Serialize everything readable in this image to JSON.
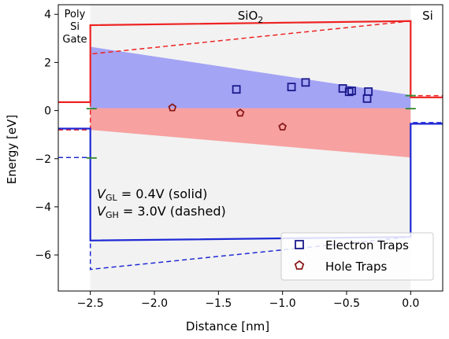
{
  "chart_data": {
    "type": "line",
    "xlabel": "Distance  [nm]",
    "ylabel": "Energy  [eV]",
    "xlim": [
      -2.75,
      0.25
    ],
    "ylim": [
      -7.5,
      4.4
    ],
    "xticks": [
      -2.5,
      -2.0,
      -1.5,
      -1.0,
      -0.5,
      0.0
    ],
    "xtick_labels": [
      "−2.5",
      "−2.0",
      "−1.5",
      "−1.0",
      "−0.5",
      "0.0"
    ],
    "yticks": [
      4,
      2,
      0,
      -2,
      -4,
      -6
    ],
    "ytick_labels": [
      "4",
      "2",
      "0",
      "−2",
      "−4",
      "−6"
    ],
    "regions": [
      {
        "name": "Poly Si Gate",
        "label_lines": [
          "Poly",
          "Si",
          "Gate"
        ],
        "x": [
          -2.75,
          -2.5
        ]
      },
      {
        "name": "SiO2",
        "label": "SiO",
        "label_sub": "2",
        "x": [
          -2.5,
          0.0
        ]
      },
      {
        "name": "Si",
        "label": "Si",
        "x": [
          0.0,
          0.25
        ]
      }
    ],
    "annotations": {
      "vgl_main": "V",
      "vgl_sub": "GL",
      "vgl_text": " = 0.4V (solid)",
      "vgh_main": "V",
      "vgh_sub": "GH",
      "vgh_text": " = 3.0V (dashed)"
    },
    "bands": [
      {
        "name": "electron trap band",
        "color": "#a4a4f5",
        "polygon": [
          [
            -2.5,
            2.65
          ],
          [
            0.0,
            0.65
          ],
          [
            0.0,
            0.1
          ],
          [
            -2.5,
            0.1
          ]
        ]
      },
      {
        "name": "hole trap band",
        "color": "#f7a1a1",
        "polygon": [
          [
            -2.5,
            0.1
          ],
          [
            0.0,
            0.1
          ],
          [
            0.0,
            -1.95
          ],
          [
            -2.5,
            -0.8
          ]
        ]
      }
    ],
    "series": [
      {
        "name": "Conduction band (V_GL)",
        "color": "#ee2222",
        "dash": false,
        "x": [
          -2.75,
          -2.5,
          -2.5,
          0.0,
          0.0,
          0.25
        ],
        "y": [
          0.35,
          0.35,
          3.55,
          3.72,
          0.55,
          0.55
        ]
      },
      {
        "name": "Conduction band (V_GH)",
        "color": "#ee2222",
        "dash": true,
        "x": [
          -2.75,
          -2.5,
          -2.5,
          0.0,
          0.0,
          0.25
        ],
        "y": [
          -0.8,
          -0.8,
          2.35,
          3.72,
          0.62,
          0.62
        ]
      },
      {
        "name": "Valence band (V_GL)",
        "color": "#1f2ad4",
        "dash": false,
        "x": [
          -2.75,
          -2.5,
          -2.5,
          0.0,
          0.0,
          0.25
        ],
        "y": [
          -0.75,
          -0.75,
          -5.4,
          -5.25,
          -0.55,
          -0.55
        ]
      },
      {
        "name": "Valence band (V_GH)",
        "color": "#1f2ad4",
        "dash": true,
        "x": [
          -2.75,
          -2.5,
          -2.5,
          0.0,
          0.0,
          0.25
        ],
        "y": [
          -1.95,
          -1.95,
          -6.6,
          -5.25,
          -0.5,
          -0.5
        ]
      }
    ],
    "fermi_marks": [
      {
        "x": [
          -2.53,
          -2.45
        ],
        "y": 0.08
      },
      {
        "x": [
          -2.53,
          -2.45
        ],
        "y": -1.97
      },
      {
        "x": [
          -0.04,
          0.04
        ],
        "y": 0.08
      },
      {
        "x": [
          -0.04,
          0.04
        ],
        "y": 0.62
      }
    ],
    "fermi_color": "#2e8b2e",
    "electron_traps": {
      "label": "Electron Traps",
      "color": "#1a1a8c",
      "points": [
        [
          -1.36,
          0.88
        ],
        [
          -0.93,
          0.98
        ],
        [
          -0.82,
          1.17
        ],
        [
          -0.53,
          0.92
        ],
        [
          -0.48,
          0.78
        ],
        [
          -0.46,
          0.82
        ],
        [
          -0.33,
          0.79
        ],
        [
          -0.34,
          0.5
        ]
      ]
    },
    "hole_traps": {
      "label": "Hole Traps",
      "color": "#8c1a1a",
      "points": [
        [
          -1.86,
          0.12
        ],
        [
          -1.33,
          -0.1
        ],
        [
          -1.0,
          -0.68
        ]
      ]
    },
    "legend_position": "lower right"
  }
}
